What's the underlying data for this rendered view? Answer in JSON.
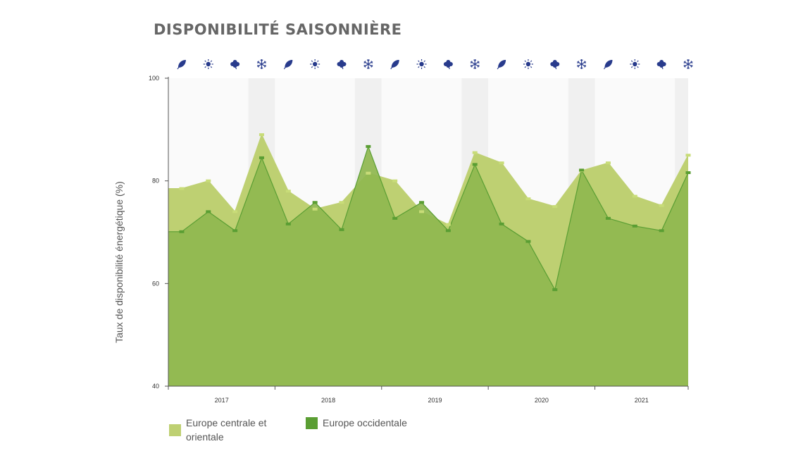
{
  "title": "DISPONIBILITÉ SAISONNIÈRE",
  "colors": {
    "central": "#bed072",
    "western": "#8fb74f",
    "western_line": "#5a9e33",
    "central_marker": "#c8dc78",
    "icon": "#283b8c",
    "band_light": "#fafafa",
    "band_dark": "#f0f0f0"
  },
  "chart_data": {
    "type": "area",
    "title": "DISPONIBILITÉ SAISONNIÈRE",
    "ylabel": "Taux de disponibilité énergétique (%)",
    "xlabel": "",
    "ylim": [
      40,
      100
    ],
    "yticks": [
      40,
      60,
      80,
      100
    ],
    "year_labels": [
      "2017",
      "2018",
      "2019",
      "2020",
      "2021"
    ],
    "season_icons": [
      "leaf-icon",
      "sun-icon",
      "maple-leaf-icon",
      "snowflake-icon",
      "leaf-icon",
      "sun-icon",
      "maple-leaf-icon",
      "snowflake-icon",
      "leaf-icon",
      "sun-icon",
      "maple-leaf-icon",
      "snowflake-icon",
      "leaf-icon",
      "sun-icon",
      "maple-leaf-icon",
      "snowflake-icon",
      "leaf-icon",
      "sun-icon",
      "maple-leaf-icon",
      "snowflake-icon"
    ],
    "series": [
      {
        "name": "Europe centrale et orientale",
        "color": "#bed072",
        "values": [
          78.5,
          80.0,
          74.0,
          89.0,
          78.0,
          74.5,
          75.8,
          81.5,
          80.0,
          74.0,
          71.5,
          85.5,
          83.5,
          76.5,
          75.0,
          82.0,
          83.5,
          77.0,
          75.2,
          85.0
        ]
      },
      {
        "name": "Europe occidentale",
        "color": "#8fb74f",
        "values": [
          70.1,
          74.0,
          70.3,
          84.5,
          71.6,
          75.8,
          70.5,
          86.7,
          72.7,
          75.8,
          70.3,
          83.2,
          71.6,
          68.2,
          58.8,
          82.1,
          72.7,
          71.2,
          70.3,
          81.6
        ]
      }
    ]
  },
  "legend": {
    "central": "Europe centrale et orientale",
    "western": "Europe occidentale"
  }
}
